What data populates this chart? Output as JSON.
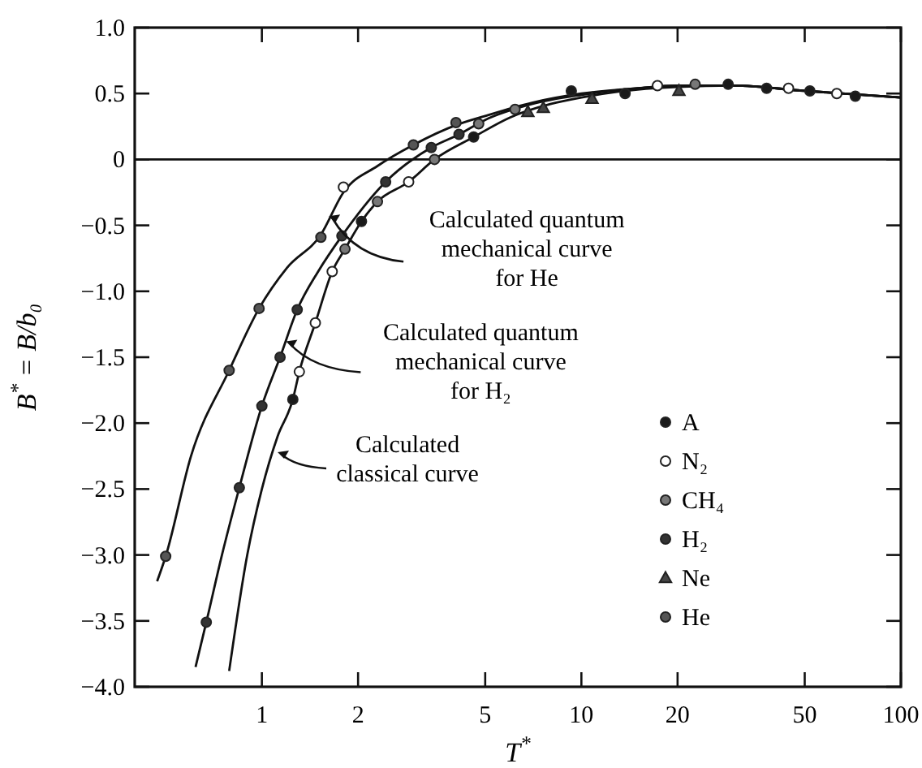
{
  "chart_data": {
    "type": "scatter",
    "xlabel": "T$^{*}$",
    "ylabel": "B$^{*}$ = B/b₀",
    "log": "x",
    "xlim": [
      0.4,
      100
    ],
    "xticks": [
      1,
      2,
      5,
      10,
      20,
      50,
      100
    ],
    "ylim": [
      -4,
      1
    ],
    "yticks": [
      {
        "value": 1,
        "label": "1.0"
      },
      {
        "value": 0.5,
        "label": "0.5"
      },
      0,
      {
        "value": -0.5,
        "label": "−0.5"
      },
      {
        "value": -1,
        "label": "−1.0"
      },
      {
        "value": -1.5,
        "label": "−1.5"
      },
      {
        "value": -2,
        "label": "−2.0"
      },
      {
        "value": -2.5,
        "label": "−2.5"
      },
      {
        "value": -3,
        "label": "−3.0"
      },
      {
        "value": -3.5,
        "label": "−3.5"
      },
      {
        "value": -4,
        "label": "−4.0"
      }
    ],
    "grid": false,
    "legend": "right",
    "ref_lines": [
      {
        "axis": "y",
        "value": 0
      }
    ],
    "series": [
      {
        "type": "line",
        "color": "#111111",
        "marker": "none",
        "x": [
          0.47,
          0.5,
          0.6,
          0.79,
          0.98,
          1.2,
          1.53,
          1.8,
          2.3,
          2.98,
          4.05,
          5,
          7,
          10,
          15,
          20,
          30,
          50,
          100
        ],
        "values": [
          -3.2,
          -3.01,
          -2.25,
          -1.6,
          -1.13,
          -0.82,
          -0.57,
          -0.25,
          -0.05,
          0.11,
          0.26,
          0.33,
          0.43,
          0.5,
          0.54,
          0.56,
          0.56,
          0.52,
          0.47
        ]
      },
      {
        "type": "line",
        "color": "#111111",
        "marker": "none",
        "x": [
          0.62,
          0.67,
          0.75,
          0.85,
          1,
          1.14,
          1.29,
          1.5,
          1.78,
          2.44,
          3.39,
          4.14,
          5,
          7,
          10,
          15,
          20,
          30,
          50,
          100
        ],
        "values": [
          -3.85,
          -3.51,
          -3,
          -2.49,
          -1.87,
          -1.5,
          -1.14,
          -0.85,
          -0.58,
          -0.17,
          0.09,
          0.19,
          0.3,
          0.42,
          0.49,
          0.54,
          0.56,
          0.56,
          0.52,
          0.47
        ]
      },
      {
        "type": "line",
        "color": "#111111",
        "marker": "none",
        "x": [
          0.79,
          0.9,
          1,
          1.12,
          1.25,
          1.31,
          1.47,
          1.66,
          1.82,
          2.05,
          2.3,
          2.88,
          3.47,
          4.6,
          6,
          8,
          10,
          15,
          20,
          30,
          50,
          100
        ],
        "values": [
          -3.88,
          -3,
          -2.5,
          -2.1,
          -1.82,
          -1.61,
          -1.24,
          -0.85,
          -0.68,
          -0.47,
          -0.32,
          -0.17,
          0,
          0.17,
          0.32,
          0.42,
          0.47,
          0.53,
          0.55,
          0.56,
          0.52,
          0.47
        ]
      },
      {
        "name": "A",
        "color": "#1a1a1a",
        "marker": "circle",
        "x": [
          1.25,
          2.05,
          4.6,
          9.3,
          13.7,
          28.8,
          38,
          51.9,
          72
        ],
        "values": [
          -1.82,
          -0.47,
          0.17,
          0.52,
          0.5,
          0.57,
          0.54,
          0.52,
          0.48
        ]
      },
      {
        "name": "N₂",
        "color": "#ffffff",
        "marker": "circle",
        "x": [
          1.31,
          1.47,
          1.66,
          1.8,
          2.88,
          17.3,
          44.5,
          63
        ],
        "values": [
          -1.61,
          -1.24,
          -0.85,
          -0.21,
          -0.17,
          0.56,
          0.54,
          0.5
        ]
      },
      {
        "name": "CH₄",
        "color": "#777777",
        "marker": "circle",
        "x": [
          1.82,
          2.3,
          3.47,
          4.77,
          6.2,
          22.7
        ],
        "values": [
          -0.68,
          -0.32,
          0,
          0.27,
          0.38,
          0.57
        ]
      },
      {
        "name": "H₂",
        "color": "#333333",
        "marker": "circle",
        "x": [
          0.67,
          0.85,
          1,
          1.14,
          1.29,
          1.78,
          2.44,
          3.39,
          4.14
        ],
        "values": [
          -3.51,
          -2.49,
          -1.87,
          -1.5,
          -1.14,
          -0.58,
          -0.17,
          0.09,
          0.19
        ]
      },
      {
        "name": "Ne",
        "color": "#444444",
        "marker": "triangle",
        "x": [
          6.8,
          7.6,
          10.8,
          20.2
        ],
        "values": [
          0.36,
          0.39,
          0.46,
          0.52
        ]
      },
      {
        "name": "He",
        "color": "#555555",
        "marker": "circle",
        "x": [
          0.5,
          0.79,
          0.98,
          1.53,
          2.98,
          4.05
        ],
        "values": [
          -3.01,
          -1.6,
          -1.13,
          -0.59,
          0.11,
          0.28
        ]
      }
    ],
    "annotations": [
      {
        "text": "Calculated quantum\nmechanical curve\nfor He",
        "x": 1.62,
        "y": -0.43
      },
      {
        "text": "Calculated quantum\nmechanical curve\nfor H₂",
        "x": 1.19,
        "y": -1.38
      },
      {
        "text": "Calculated\nclassical curve",
        "x": 1.12,
        "y": -2.22
      }
    ]
  }
}
